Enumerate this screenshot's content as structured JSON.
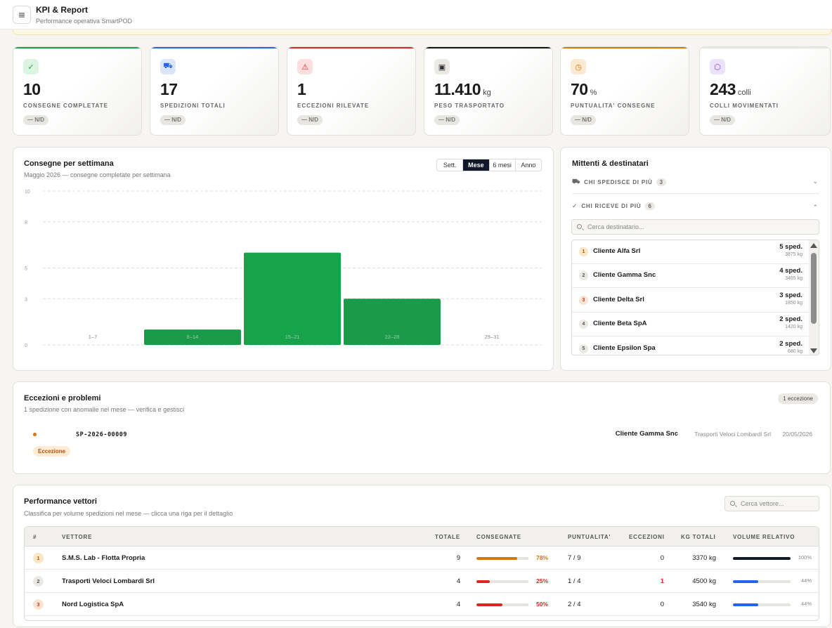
{
  "header": {
    "title": "KPI & Report",
    "subtitle": "Performance operativa SmartPOD"
  },
  "kpis": [
    {
      "value": "10",
      "unit": "",
      "label": "CONSEGNE COMPLETATE",
      "badge": "— N/D",
      "accent": "#16a34a",
      "icon": "check-icon",
      "glyph": "✓"
    },
    {
      "value": "17",
      "unit": "",
      "label": "SPEDIZIONI TOTALI",
      "badge": "— N/D",
      "accent": "#2563eb",
      "icon": "truck-icon",
      "glyph": "⛟"
    },
    {
      "value": "1",
      "unit": "",
      "label": "ECCEZIONI RILEVATE",
      "badge": "— N/D",
      "accent": "#dc2626",
      "icon": "warning-icon",
      "glyph": "⚠"
    },
    {
      "value": "11.410",
      "unit": "kg",
      "label": "PESO TRASPORTATO",
      "badge": "— N/D",
      "accent": "#111111",
      "icon": "briefcase-icon",
      "glyph": "▣"
    },
    {
      "value": "70",
      "unit": "%",
      "label": "PUNTUALITA' CONSEGNE",
      "badge": "— N/D",
      "accent": "#d97706",
      "icon": "clock-icon",
      "glyph": "◷"
    },
    {
      "value": "243",
      "unit": "colli",
      "label": "COLLI MOVIMENTATI",
      "badge": "— N/D",
      "accent": "#e5e5e5",
      "icon": "package-icon",
      "glyph": "⬡"
    }
  ],
  "weekly": {
    "title": "Consegne per settimana",
    "subtitle": "Maggio 2026 — consegne completate per settimana",
    "ranges": [
      "Sett.",
      "Mese",
      "6 mesi",
      "Anno"
    ],
    "active_range": "Mese"
  },
  "chart_data": {
    "type": "bar",
    "categories": [
      "1–7",
      "8–14",
      "15–21",
      "22–28",
      "29–31"
    ],
    "values": [
      0,
      1,
      6,
      3,
      0
    ],
    "yticks": [
      "10",
      "8",
      "5",
      "3",
      "0"
    ],
    "ylim": [
      0,
      10
    ],
    "colors": [
      "#16a34a",
      "#1b9a4a",
      "#16a34a",
      "#1b9a4a",
      "#16a34a"
    ],
    "grid": true
  },
  "parties": {
    "title": "Mittenti & destinatari",
    "senders_label": "CHI SPEDISCE DI PIÙ",
    "senders_count": "3",
    "receivers_label": "CHI RICEVE DI PIÙ",
    "receivers_count": "6",
    "search_placeholder": "Cerca destinatario...",
    "receivers": [
      {
        "rank": "1",
        "name": "Cliente Alfa Srl",
        "count": "5 sped.",
        "kg": "3875 kg"
      },
      {
        "rank": "2",
        "name": "Cliente Gamma Snc",
        "count": "4 sped.",
        "kg": "3465 kg"
      },
      {
        "rank": "3",
        "name": "Cliente Delta Srl",
        "count": "3 sped.",
        "kg": "1850 kg"
      },
      {
        "rank": "4",
        "name": "Cliente Beta SpA",
        "count": "2 sped.",
        "kg": "1420 kg"
      },
      {
        "rank": "5",
        "name": "Cliente Epsilon Spa",
        "count": "2 sped.",
        "kg": "680 kg"
      }
    ]
  },
  "exceptions": {
    "title": "Eccezioni e problemi",
    "subtitle": "1 spedizione con anomalie nel mese — verifica e gestisci",
    "badge": "1 eccezione",
    "items": [
      {
        "code": "SP-2026-00009",
        "tag": "Eccezione",
        "recipient": "Cliente Gamma Snc",
        "carrier": "Trasporti Veloci Lombardi Srl",
        "date": "20/05/2026"
      }
    ]
  },
  "carriers": {
    "title": "Performance vettori",
    "subtitle": "Classifica per volume spedizioni nel mese — clicca una riga per il dettaglio",
    "search_placeholder": "Cerca vettore...",
    "columns": [
      "#",
      "VETTORE",
      "TOTALE",
      "CONSEGNATE",
      "PUNTUALITA'",
      "ECCEZIONI",
      "KG TOTALI",
      "VOLUME RELATIVO"
    ],
    "rows": [
      {
        "rank": "1",
        "name": "S.M.S. Lab - Flotta Propria",
        "total": "9",
        "delivered_pct": "78%",
        "delivered_frac": 0.78,
        "bar_color": "#d97706",
        "punct": "7 / 9",
        "exc": "0",
        "kg": "3370 kg",
        "vol": "100%",
        "vol_frac": 1.0,
        "vol_color": "#111827"
      },
      {
        "rank": "2",
        "name": "Trasporti Veloci Lombardi Srl",
        "total": "4",
        "delivered_pct": "25%",
        "delivered_frac": 0.25,
        "bar_color": "#dc2626",
        "punct": "1 / 4",
        "exc": "1",
        "kg": "4500 kg",
        "vol": "44%",
        "vol_frac": 0.44,
        "vol_color": "#2563eb"
      },
      {
        "rank": "3",
        "name": "Nord Logistica SpA",
        "total": "4",
        "delivered_pct": "50%",
        "delivered_frac": 0.5,
        "bar_color": "#dc2626",
        "punct": "2 / 4",
        "exc": "0",
        "kg": "3540 kg",
        "vol": "44%",
        "vol_frac": 0.44,
        "vol_color": "#2563eb"
      }
    ]
  }
}
